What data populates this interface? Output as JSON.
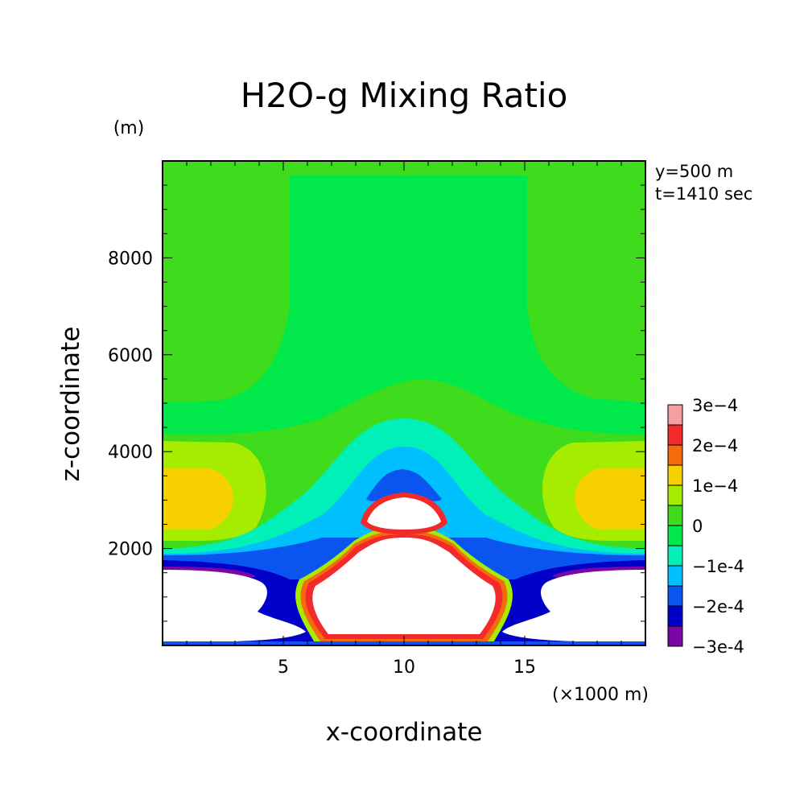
{
  "chart_data": {
    "type": "heatmap",
    "title": "H2O-g Mixing Ratio",
    "xlabel": "x-coordinate",
    "ylabel": "z-coordinate",
    "x_unit": "(×1000 m)",
    "y_unit": "(m)",
    "annotations": [
      "y=500 m",
      "t=1410 sec"
    ],
    "xlim": [
      0,
      20
    ],
    "ylim": [
      0,
      10000
    ],
    "x_ticks": [
      5,
      10,
      15
    ],
    "x_tick_labels": [
      "5",
      "10",
      "15"
    ],
    "y_ticks": [
      2000,
      4000,
      6000,
      8000
    ],
    "y_tick_labels": [
      "2000",
      "4000",
      "6000",
      "8000"
    ],
    "colorbar": {
      "levels": [
        {
          "label": "3e-4",
          "color": "#f4a0a0"
        },
        {
          "label": "",
          "color": "#f22a2a"
        },
        {
          "label": "2e-4",
          "color": "#f56a0a"
        },
        {
          "label": "",
          "color": "#f7d000"
        },
        {
          "label": "1e-4",
          "color": "#a6ec00"
        },
        {
          "label": "",
          "color": "#3fdc1e"
        },
        {
          "label": "0",
          "color": "#00e84a"
        },
        {
          "label": "",
          "color": "#00f0b8"
        },
        {
          "label": "-1e-4",
          "color": "#00bfff"
        },
        {
          "label": "",
          "color": "#0a55f0"
        },
        {
          "label": "-2e-4",
          "color": "#0000c8"
        },
        {
          "label": "",
          "color": "#7a06a6"
        },
        {
          "label": "-3e-4",
          "color": ""
        }
      ]
    }
  }
}
